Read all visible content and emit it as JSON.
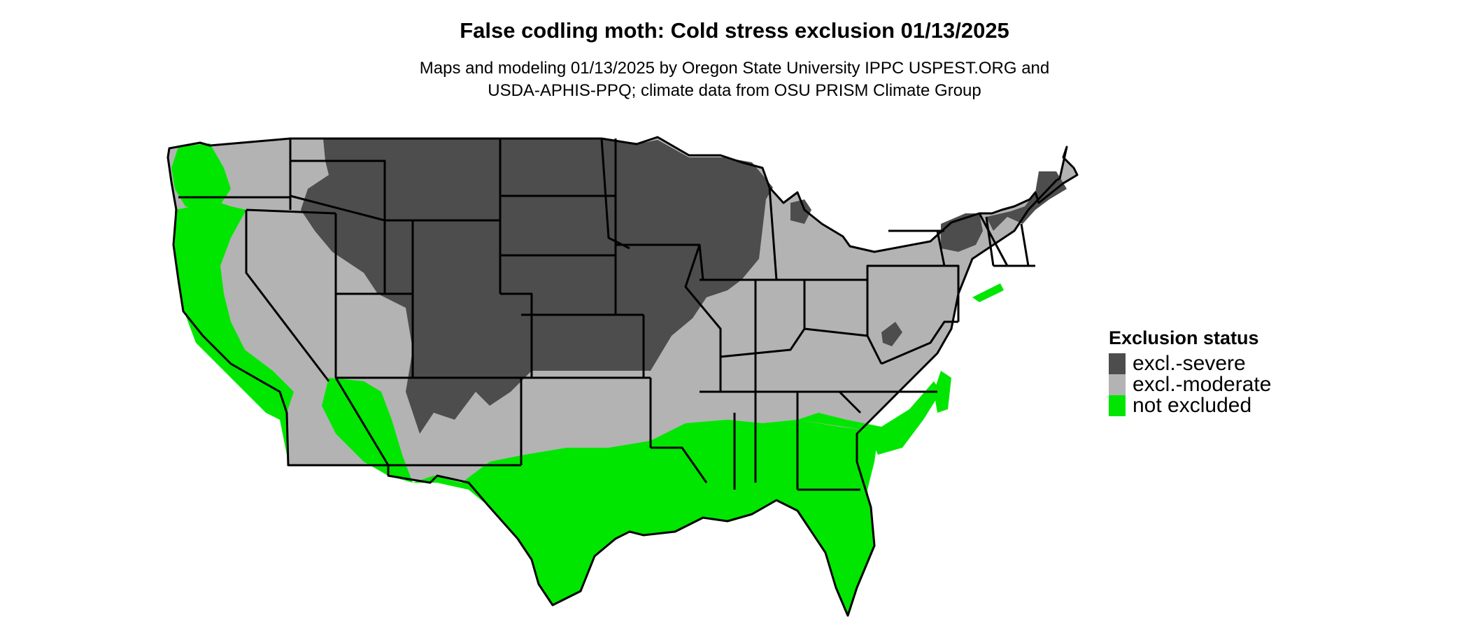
{
  "title": "False codling moth: Cold stress exclusion 01/13/2025",
  "subtitle": [
    "Maps and modeling 01/13/2025 by Oregon State University IPPC USPEST.ORG and",
    "USDA-APHIS-PPQ; climate data from OSU PRISM Climate Group"
  ],
  "legend": {
    "title": "Exclusion status",
    "items": [
      {
        "label": "excl.-severe",
        "color": "#4d4d4d"
      },
      {
        "label": "excl.-moderate",
        "color": "#b3b3b3"
      },
      {
        "label": "not excluded",
        "color": "#00e600"
      }
    ]
  }
}
